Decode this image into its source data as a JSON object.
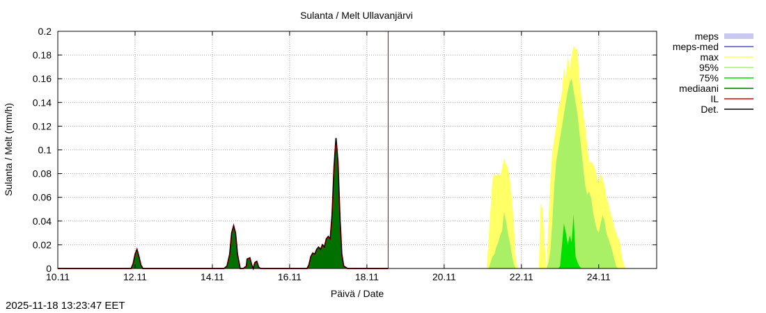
{
  "chart_data": {
    "type": "area",
    "title": "Sulanta / Melt  Ullavanjärvi",
    "xlabel": "Päivä / Date",
    "ylabel": "Sulanta / Melt (mm/h)",
    "xlim": [
      10.0,
      25.5
    ],
    "ylim": [
      0,
      0.2
    ],
    "grid": true,
    "legend_position": "right",
    "x_ticks": [
      10,
      12,
      14,
      16,
      18,
      20,
      22,
      24
    ],
    "x_tick_labels": [
      "10.11",
      "12.11",
      "14.11",
      "16.11",
      "18.11",
      "20.11",
      "22.11",
      "24.11"
    ],
    "y_ticks": [
      0,
      0.02,
      0.04,
      0.06,
      0.08,
      0.1,
      0.12,
      0.14,
      0.16,
      0.18,
      0.2
    ],
    "y_tick_labels": [
      "0",
      "0.02",
      "0.04",
      "0.06",
      "0.08",
      "0.1",
      "0.12",
      "0.14",
      "0.16",
      "0.18",
      "0.2"
    ],
    "forecast_start": 18.55,
    "colors": {
      "meps": "#c8c8f0",
      "meps_med": "#5050c0",
      "max": "#ffff66",
      "p95": "#aaf066",
      "p75": "#00e000",
      "median": "#007000",
      "il": "#e00000",
      "det": "#000000",
      "now_line": "#a00000"
    },
    "legend": [
      {
        "label": "meps",
        "key": "meps",
        "kind": "box"
      },
      {
        "label": "meps-med",
        "key": "meps_med",
        "kind": "line"
      },
      {
        "label": "max",
        "key": "max",
        "kind": "line"
      },
      {
        "label": "95%",
        "key": "p95",
        "kind": "line"
      },
      {
        "label": "75%",
        "key": "p75",
        "kind": "line"
      },
      {
        "label": "mediaani",
        "key": "median",
        "kind": "line"
      },
      {
        "label": "IL",
        "key": "il",
        "kind": "line"
      },
      {
        "label": "Det.",
        "key": "det",
        "kind": "line"
      }
    ],
    "observed": {
      "x": [
        10.0,
        11.9,
        11.95,
        12.0,
        12.05,
        12.1,
        12.15,
        12.2,
        14.2,
        14.3,
        14.38,
        14.45,
        14.5,
        14.55,
        14.6,
        14.65,
        14.72,
        14.8,
        14.88,
        14.9,
        14.97,
        15.02,
        15.06,
        15.1,
        15.15,
        15.2,
        15.25,
        16.45,
        16.5,
        16.55,
        16.6,
        16.65,
        16.7,
        16.75,
        16.8,
        16.85,
        16.9,
        16.95,
        17.0,
        17.05,
        17.1,
        17.15,
        17.2,
        17.25,
        17.3,
        17.35,
        17.4,
        17.5,
        18.55
      ],
      "y": [
        0,
        0,
        0.004,
        0.012,
        0.016,
        0.01,
        0.003,
        0,
        0,
        0,
        0.002,
        0.012,
        0.03,
        0.036,
        0.03,
        0.012,
        0,
        0,
        0.002,
        0.008,
        0.009,
        0.003,
        0,
        0.005,
        0.006,
        0.001,
        0,
        0,
        0.003,
        0.01,
        0.013,
        0.012,
        0.016,
        0.018,
        0.016,
        0.02,
        0.018,
        0.025,
        0.027,
        0.025,
        0.045,
        0.085,
        0.11,
        0.09,
        0.045,
        0.012,
        0.002,
        0,
        0
      ]
    },
    "forecast": {
      "x": [
        18.55,
        21.1,
        21.15,
        21.2,
        21.25,
        21.3,
        21.35,
        21.4,
        21.45,
        21.5,
        21.55,
        21.6,
        21.65,
        21.7,
        21.75,
        21.8,
        21.85,
        21.9,
        21.95,
        22.0,
        22.05,
        22.1,
        22.15,
        22.2,
        22.25,
        22.3,
        22.35,
        22.4,
        22.45,
        22.5,
        22.55,
        22.6,
        22.65,
        22.7,
        22.75,
        22.8,
        22.85,
        22.9,
        22.95,
        23.0,
        23.05,
        23.1,
        23.15,
        23.2,
        23.25,
        23.3,
        23.35,
        23.4,
        23.45,
        23.5,
        23.55,
        23.6,
        23.65,
        23.7,
        23.75,
        23.8,
        23.85,
        23.9,
        23.95,
        24.0,
        24.05,
        24.1,
        24.15,
        24.2,
        24.25,
        24.3,
        24.35,
        24.4,
        24.45,
        24.5,
        24.55,
        24.6,
        24.65,
        24.7,
        24.75,
        24.8,
        24.85,
        24.9,
        24.95,
        25.0,
        25.05,
        25.1,
        25.15,
        25.2,
        25.25,
        25.3,
        25.35,
        25.4,
        25.45,
        25.5
      ],
      "max": [
        0,
        0,
        0.025,
        0.05,
        0.075,
        0.08,
        0.078,
        0.08,
        0.078,
        0.085,
        0.093,
        0.088,
        0.085,
        0.075,
        0.06,
        0.04,
        0.01,
        0,
        0,
        0,
        0,
        0,
        0,
        0,
        0,
        0,
        0,
        0,
        0,
        0.055,
        0.05,
        0.02,
        0,
        0.04,
        0.075,
        0.1,
        0.11,
        0.12,
        0.135,
        0.14,
        0.15,
        0.17,
        0.16,
        0.18,
        0.168,
        0.18,
        0.188,
        0.185,
        0.185,
        0.16,
        0.145,
        0.13,
        0.12,
        0.105,
        0.09,
        0.09,
        0.088,
        0.085,
        0.078,
        0.072,
        0.08,
        0.076,
        0.07,
        0.06,
        0.055,
        0.048,
        0.042,
        0.035,
        0.03,
        0.026,
        0.022,
        0.01,
        0.003,
        0,
        0,
        0,
        0,
        0,
        0,
        0,
        0,
        0,
        0,
        0,
        0,
        0,
        0,
        0,
        0,
        0
      ],
      "p95": [
        0,
        0,
        0,
        0.005,
        0.01,
        0.012,
        0.018,
        0.022,
        0.028,
        0.032,
        0.048,
        0.04,
        0.03,
        0.022,
        0.012,
        0.004,
        0,
        0,
        0,
        0,
        0,
        0,
        0,
        0,
        0,
        0,
        0,
        0,
        0,
        0,
        0,
        0,
        0,
        0.005,
        0.015,
        0.04,
        0.07,
        0.09,
        0.1,
        0.11,
        0.12,
        0.13,
        0.14,
        0.15,
        0.157,
        0.16,
        0.15,
        0.14,
        0.13,
        0.115,
        0.1,
        0.085,
        0.07,
        0.062,
        0.065,
        0.06,
        0.048,
        0.04,
        0.033,
        0.03,
        0.038,
        0.045,
        0.04,
        0.03,
        0.025,
        0.02,
        0.015,
        0.008,
        0.002,
        0,
        0,
        0,
        0,
        0,
        0,
        0,
        0,
        0,
        0,
        0,
        0,
        0,
        0,
        0,
        0,
        0,
        0,
        0,
        0,
        0
      ],
      "p75": [
        0,
        0,
        0,
        0,
        0,
        0,
        0,
        0,
        0,
        0,
        0,
        0,
        0,
        0,
        0,
        0,
        0,
        0,
        0,
        0,
        0,
        0,
        0,
        0,
        0,
        0,
        0,
        0,
        0,
        0,
        0,
        0,
        0,
        0,
        0,
        0,
        0,
        0,
        0,
        0.002,
        0.02,
        0.038,
        0.03,
        0.02,
        0.028,
        0.022,
        0.046,
        0.01,
        0.005,
        0.002,
        0,
        0,
        0,
        0,
        0,
        0,
        0,
        0,
        0,
        0,
        0,
        0,
        0,
        0,
        0,
        0,
        0,
        0,
        0,
        0,
        0,
        0,
        0,
        0,
        0,
        0,
        0,
        0,
        0,
        0,
        0,
        0,
        0,
        0,
        0,
        0,
        0,
        0,
        0,
        0
      ]
    }
  },
  "timestamp": "2025-11-18 13:23:47 EET"
}
